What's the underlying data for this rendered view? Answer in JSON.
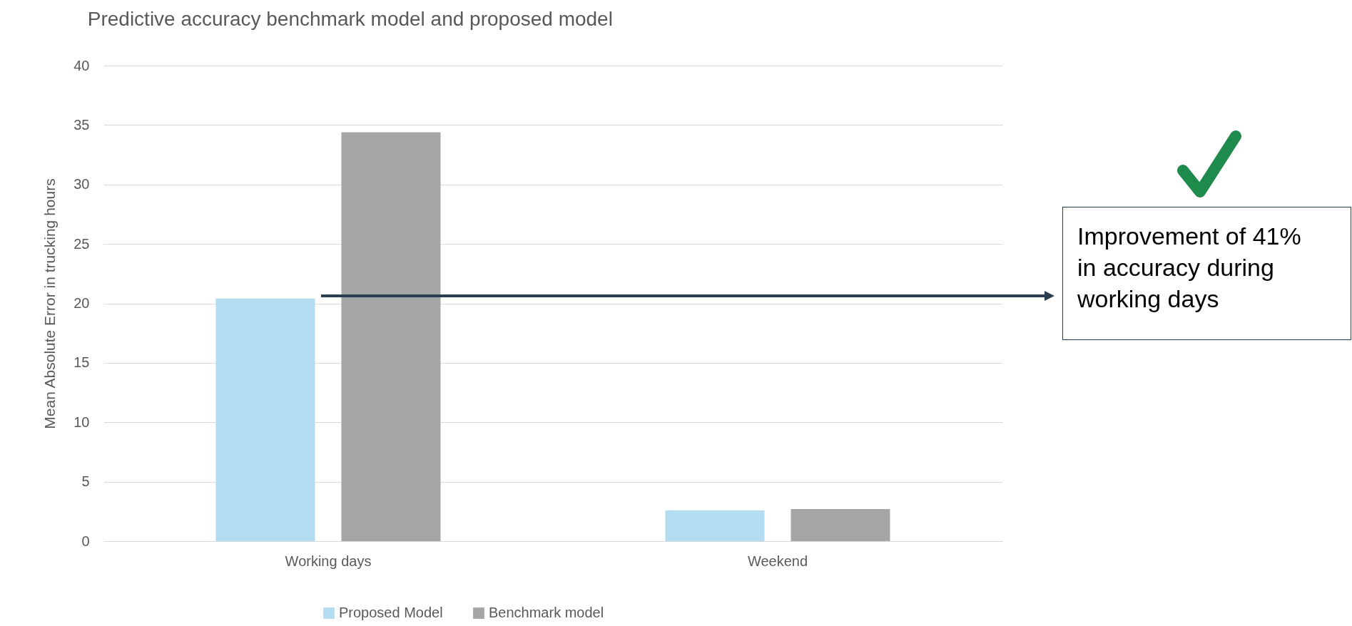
{
  "chart_data": {
    "type": "bar",
    "title": "Predictive accuracy benchmark model and proposed model",
    "ylabel": "Mean Absolute Error in trucking hours",
    "categories": [
      "Working days",
      "Weekend"
    ],
    "series": [
      {
        "name": "Proposed Model",
        "color": "#b4dcf0",
        "values": [
          20.4,
          2.6
        ]
      },
      {
        "name": "Benchmark model",
        "color": "#a5a5a5",
        "values": [
          34.4,
          2.7
        ]
      }
    ],
    "ylim": [
      0,
      40
    ],
    "yticks": [
      0,
      5,
      10,
      15,
      20,
      25,
      30,
      35,
      40
    ],
    "grid": "y",
    "legend": "bottom",
    "annotations": [
      "Improvement of 41% in accuracy during working days"
    ]
  }
}
